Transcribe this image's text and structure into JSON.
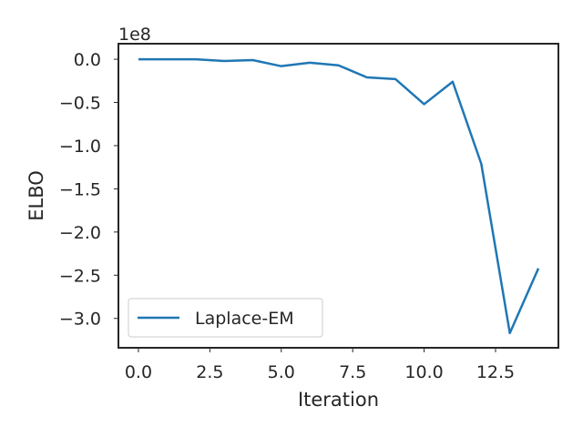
{
  "chart_data": {
    "type": "line",
    "title": "",
    "xlabel": "Iteration",
    "ylabel": "ELBO",
    "offset_label": "1e8",
    "xlim": [
      -0.7,
      14.7
    ],
    "ylim": [
      -3.34,
      0.18
    ],
    "xticks": [
      0,
      2.5,
      5,
      7.5,
      10,
      12.5
    ],
    "xtick_labels": [
      "0.0",
      "2.5",
      "5.0",
      "7.5",
      "10.0",
      "12.5"
    ],
    "yticks": [
      0,
      -0.5,
      -1.0,
      -1.5,
      -2.0,
      -2.5,
      -3.0
    ],
    "ytick_labels": [
      "0.0",
      "−0.5",
      "−1.0",
      "−1.5",
      "−2.0",
      "−2.5",
      "−3.0"
    ],
    "y_unit_scale": 100000000,
    "grid": false,
    "legend_position": "lower-left",
    "series": [
      {
        "name": "Laplace-EM",
        "color": "#1f77b4",
        "x": [
          0,
          1,
          2,
          3,
          4,
          5,
          6,
          7,
          8,
          9,
          10,
          11,
          12,
          13,
          14
        ],
        "y": [
          0.0,
          0.0,
          0.0,
          -0.02,
          -0.01,
          -0.08,
          -0.04,
          -0.07,
          -0.21,
          -0.23,
          -0.52,
          -0.26,
          -1.21,
          -3.17,
          -2.42
        ]
      }
    ]
  }
}
